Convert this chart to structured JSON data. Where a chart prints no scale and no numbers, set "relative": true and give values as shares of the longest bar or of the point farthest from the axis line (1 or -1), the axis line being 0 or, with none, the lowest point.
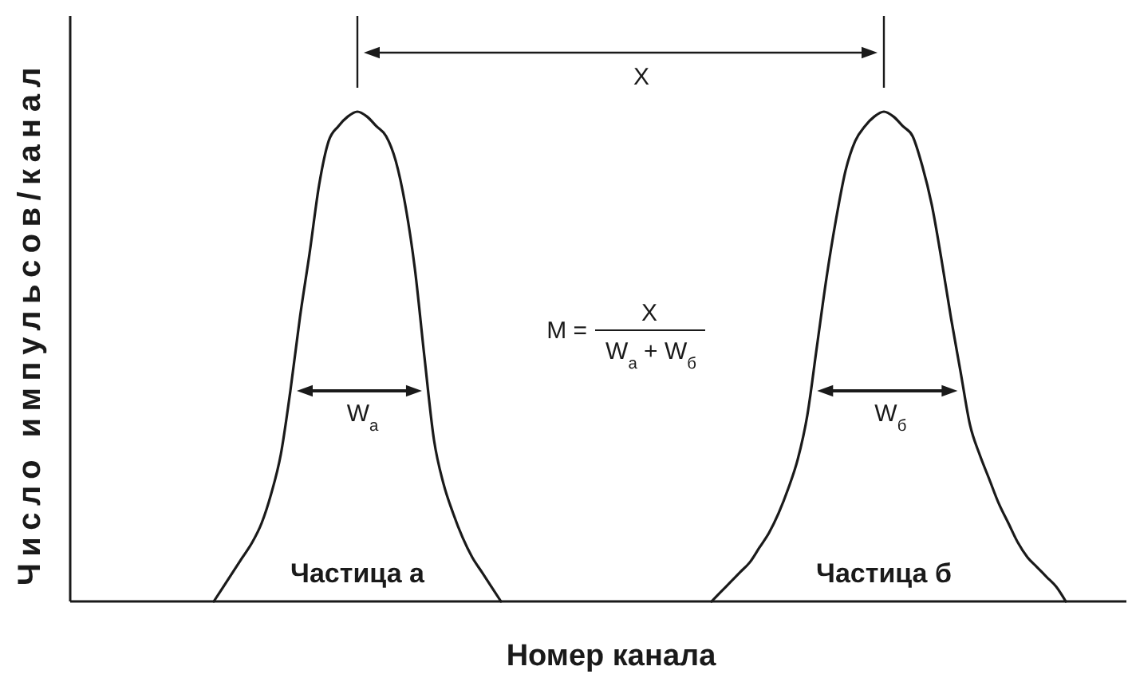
{
  "chart_data": {
    "type": "line",
    "relative": true,
    "xlabel": "Номер канала",
    "ylabel": "Число импульсов/канал",
    "categories": [
      null,
      null,
      null,
      null,
      null,
      null,
      null,
      null,
      null,
      null,
      null,
      null,
      null,
      null,
      null,
      null,
      null,
      null,
      null,
      null,
      null,
      null,
      null,
      null,
      null,
      null,
      null,
      null,
      null,
      null,
      null,
      null,
      null,
      null,
      null,
      null,
      null,
      null,
      null,
      null,
      null,
      null,
      null,
      null,
      null,
      null,
      null,
      null,
      null,
      null,
      null,
      null,
      null,
      null,
      null,
      null,
      null,
      null,
      null,
      null,
      null,
      null,
      null,
      null,
      null,
      null,
      null,
      null,
      null,
      null,
      null,
      null,
      null,
      null,
      null,
      null,
      null,
      null,
      null,
      null,
      null,
      null,
      null,
      null,
      null,
      null,
      null,
      null,
      null,
      null,
      null,
      null,
      null,
      null,
      null,
      null,
      null,
      null,
      null,
      null,
      null,
      null,
      null,
      null,
      null,
      null,
      null,
      null,
      null,
      null,
      null
    ],
    "series": [
      {
        "name": "Частица а",
        "color": "#1a1a1a",
        "values": [
          null,
          null,
          null,
          null,
          null,
          null,
          null,
          null,
          null,
          null,
          null,
          null,
          null,
          null,
          null,
          0,
          0.03,
          0.06,
          0.09,
          0.12,
          0.16,
          0.22,
          0.3,
          0.43,
          0.58,
          0.71,
          0.85,
          0.94,
          0.97,
          0.99,
          1,
          0.99,
          0.97,
          0.95,
          0.9,
          0.81,
          0.68,
          0.5,
          0.33,
          0.24,
          0.18,
          0.13,
          0.09,
          0.06,
          0.03,
          0,
          null,
          null,
          null,
          null,
          null,
          null,
          null,
          null,
          null,
          null,
          null,
          null,
          null,
          null,
          null,
          null,
          null,
          null,
          null,
          null,
          null,
          null,
          null,
          null,
          null,
          null,
          null,
          null,
          null,
          null,
          null,
          null,
          null,
          null,
          null,
          null,
          null,
          null,
          null,
          null,
          null,
          null,
          null,
          null,
          null,
          null,
          null,
          null,
          null,
          null,
          null,
          null,
          null,
          null,
          null,
          null,
          null,
          null,
          null,
          null,
          null,
          null,
          null,
          null,
          null
        ]
      },
      {
        "name": "Частица б",
        "color": "#1a1a1a",
        "values": [
          null,
          null,
          null,
          null,
          null,
          null,
          null,
          null,
          null,
          null,
          null,
          null,
          null,
          null,
          null,
          null,
          null,
          null,
          null,
          null,
          null,
          null,
          null,
          null,
          null,
          null,
          null,
          null,
          null,
          null,
          null,
          null,
          null,
          null,
          null,
          null,
          null,
          null,
          null,
          null,
          null,
          null,
          null,
          null,
          null,
          null,
          null,
          null,
          null,
          null,
          null,
          null,
          null,
          null,
          null,
          null,
          null,
          null,
          null,
          null,
          null,
          null,
          null,
          null,
          null,
          null,
          null,
          0,
          0.02,
          0.04,
          0.06,
          0.08,
          0.11,
          0.14,
          0.18,
          0.23,
          0.29,
          0.38,
          0.52,
          0.66,
          0.78,
          0.88,
          0.94,
          0.97,
          0.99,
          1,
          0.99,
          0.97,
          0.95,
          0.89,
          0.81,
          0.7,
          0.58,
          0.47,
          0.36,
          0.3,
          0.25,
          0.2,
          0.16,
          0.12,
          0.09,
          0.07,
          0.05,
          0.03,
          0,
          null,
          null,
          null,
          null,
          null,
          null
        ]
      }
    ],
    "annotations": [
      "X",
      "M =",
      "X",
      "W$_{а}$ + W$_{б}$",
      "W$_{а}$",
      "W$_{б}$"
    ]
  }
}
